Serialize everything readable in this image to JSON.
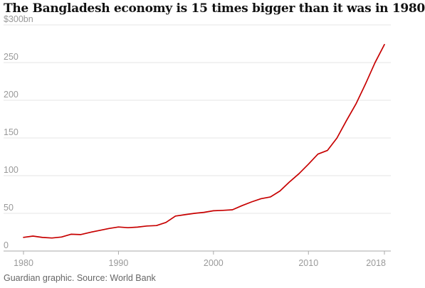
{
  "chart_data": {
    "type": "line",
    "title": "The Bangladesh economy is 15 times bigger than it was in 1980",
    "xlabel": "",
    "ylabel": "",
    "y_unit_label": "$300bn",
    "ylim": [
      0,
      300
    ],
    "xlim": [
      1980,
      2018
    ],
    "y_ticks": [
      {
        "value": 0,
        "label": "0"
      },
      {
        "value": 50,
        "label": "50"
      },
      {
        "value": 100,
        "label": "100"
      },
      {
        "value": 150,
        "label": "150"
      },
      {
        "value": 200,
        "label": "200"
      },
      {
        "value": 250,
        "label": "250"
      },
      {
        "value": 300,
        "label": "$300bn"
      }
    ],
    "x_ticks": [
      {
        "value": 1980,
        "label": "1980"
      },
      {
        "value": 1990,
        "label": "1990"
      },
      {
        "value": 2000,
        "label": "2000"
      },
      {
        "value": 2010,
        "label": "2010"
      },
      {
        "value": 2018,
        "label": "2018"
      }
    ],
    "grid": "horizontal",
    "line_color": "#c70000",
    "series": [
      {
        "x": [
          1980,
          1981,
          1982,
          1983,
          1984,
          1985,
          1986,
          1987,
          1988,
          1989,
          1990,
          1991,
          1992,
          1993,
          1994,
          1995,
          1996,
          1997,
          1998,
          1999,
          2000,
          2001,
          2002,
          2003,
          2004,
          2005,
          2006,
          2007,
          2008,
          2009,
          2010,
          2011,
          2012,
          2013,
          2014,
          2015,
          2016,
          2017,
          2018
        ],
        "values": [
          18.1,
          19.8,
          18.0,
          17.3,
          18.6,
          22.3,
          21.8,
          24.7,
          27.3,
          29.9,
          31.9,
          30.9,
          31.7,
          33.2,
          33.8,
          37.9,
          46.4,
          48.2,
          50.0,
          51.3,
          53.4,
          54.0,
          54.7,
          60.2,
          65.1,
          69.4,
          71.8,
          79.6,
          91.6,
          102.5,
          115.3,
          128.6,
          133.4,
          149.9,
          172.9,
          195.1,
          221.4,
          249.7,
          274.0
        ]
      }
    ]
  },
  "source": "Guardian graphic. Source: World Bank"
}
